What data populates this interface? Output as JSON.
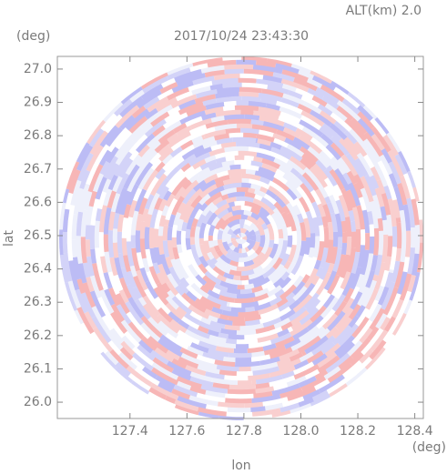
{
  "chart_data": {
    "type": "radar-ppi",
    "title": "2017/10/24 23:43:30",
    "subtitle": "ALT(km) 2.0",
    "x_label": "lon",
    "x_unit": "(deg)",
    "y_label": "lat",
    "y_unit": "(deg)",
    "xlim": [
      127.145,
      128.43
    ],
    "ylim": [
      25.951,
      27.038
    ],
    "xticks": [
      127.4,
      127.6,
      127.8,
      {
        "value": 128.0,
        "label": "128.0"
      },
      128.2,
      128.4
    ],
    "yticks": [
      {
        "value": 26.0,
        "label": "26.0"
      },
      26.1,
      26.2,
      26.3,
      26.4,
      26.5,
      26.6,
      26.7,
      26.8,
      26.9,
      {
        "value": 27.0,
        "label": "27.0"
      }
    ]
  }
}
